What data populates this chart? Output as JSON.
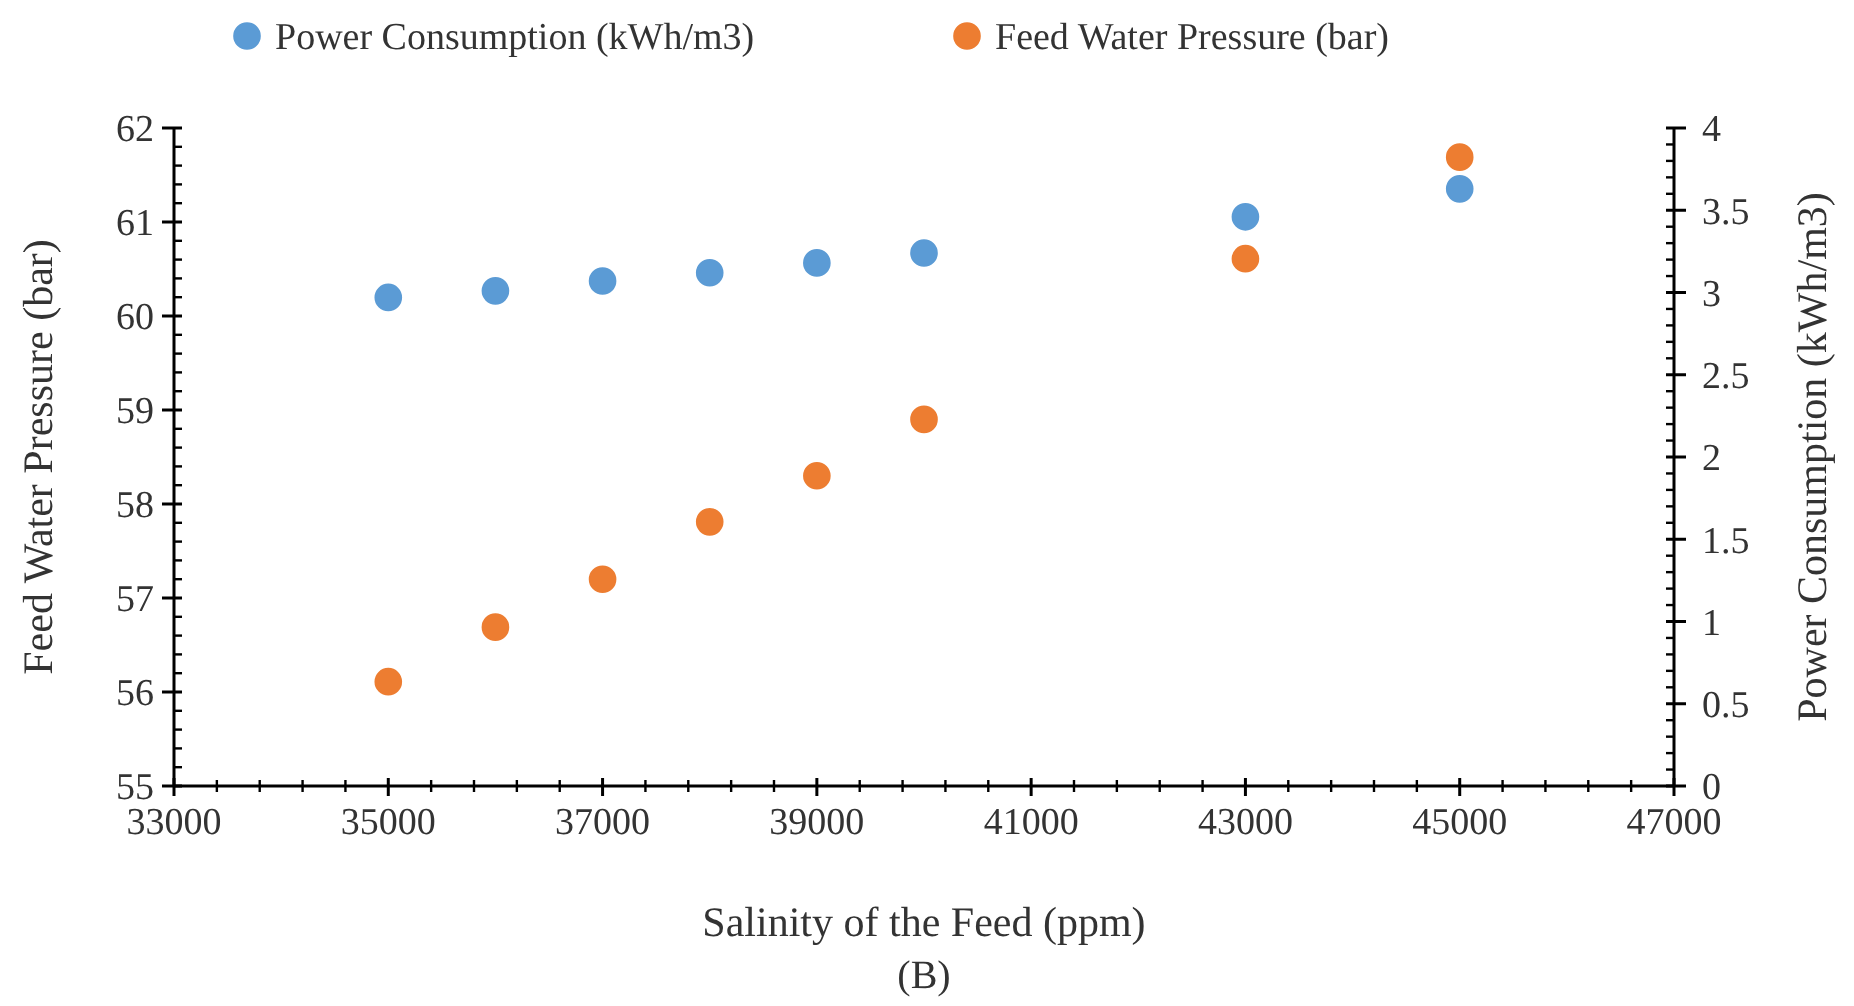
{
  "chart_data": {
    "type": "scatter",
    "xlabel": "Salinity of the Feed (ppm)",
    "ylabel": "Feed Water Pressure (bar)",
    "y2label": "Power Consumption (kWh/m3)",
    "annotations": [
      "(B)"
    ],
    "x": [
      35000,
      36000,
      37000,
      38000,
      39000,
      40000,
      43000,
      45000
    ],
    "series": [
      {
        "name": "Power Consumption (kWh/m3)",
        "color": "#5b9bd5",
        "axis": "y2",
        "values": [
          2.97,
          3.01,
          3.07,
          3.12,
          3.18,
          3.24,
          3.46,
          3.63
        ]
      },
      {
        "name": "Feed Water Pressure (bar)",
        "color": "#ed7d31",
        "values": [
          56.11,
          56.69,
          57.2,
          57.81,
          58.3,
          58.9,
          60.61,
          61.69
        ]
      }
    ],
    "xlim": [
      33000,
      47000
    ],
    "xticks": [
      33000,
      35000,
      37000,
      39000,
      41000,
      43000,
      45000,
      47000
    ],
    "ylim": [
      55,
      62
    ],
    "yticks": [
      55,
      56,
      57,
      58,
      59,
      60,
      61,
      62
    ],
    "y2lim": [
      0,
      4
    ],
    "y2ticks": [
      0,
      {
        "value": 0.5,
        "label": "0.5"
      },
      1,
      {
        "value": 1.5,
        "label": "1.5"
      },
      2,
      {
        "value": 2.5,
        "label": "2.5"
      },
      3,
      {
        "value": 3.5,
        "label": "3.5"
      },
      4
    ],
    "legend": "top",
    "grid": false,
    "marker": "circle"
  }
}
